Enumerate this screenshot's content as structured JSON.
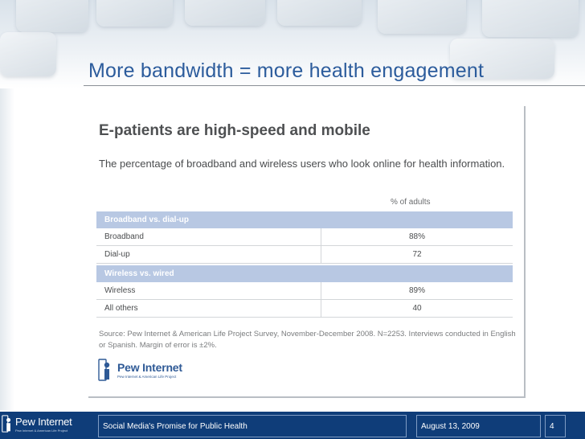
{
  "slide": {
    "title": "More bandwidth = more health engagement"
  },
  "panel": {
    "heading": "E-patients are high-speed and mobile",
    "subtitle": "The percentage of broadband and wireless users who look online for health information.",
    "column_header": "% of adults",
    "groups": [
      {
        "header": "Broadband vs. dial-up",
        "rows": [
          {
            "label": "Broadband",
            "value": "88%"
          },
          {
            "label": "Dial-up",
            "value": "72"
          }
        ]
      },
      {
        "header": "Wireless vs. wired",
        "rows": [
          {
            "label": "Wireless",
            "value": "89%"
          },
          {
            "label": "All others",
            "value": "40"
          }
        ]
      }
    ],
    "source": "Source: Pew Internet & American Life Project Survey, November-December 2008. N=2253. Interviews conducted in English or Spanish.  Margin of error is ±2%.",
    "logo": {
      "name": "Pew Internet",
      "tagline": "Pew Internet & American Life Project"
    }
  },
  "footer": {
    "logo_name": "Pew Internet",
    "logo_tagline": "Pew Internet & American Life Project",
    "presentation_title": "Social Media's Promise for Public Health",
    "date": "August 13, 2009",
    "page_number": "4"
  },
  "colors": {
    "title_blue": "#2c5c9c",
    "table_header_blue": "#b8c8e3",
    "footer_navy": "#0f3d79"
  }
}
